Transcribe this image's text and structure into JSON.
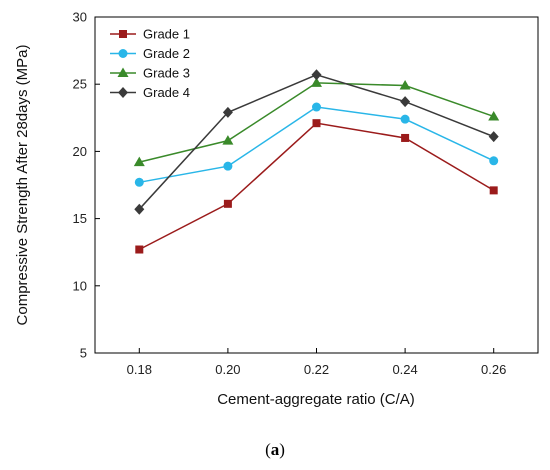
{
  "chart_data": {
    "type": "line",
    "title": "",
    "xlabel": "Cement-aggregate ratio (C/A)",
    "ylabel": "Compressive Strength After 28days (MPa)",
    "x": [
      0.18,
      0.2,
      0.22,
      0.24,
      0.26
    ],
    "x_tick_labels": [
      "0.18",
      "0.20",
      "0.22",
      "0.24",
      "0.26"
    ],
    "xlim": [
      0.17,
      0.27
    ],
    "ylim": [
      5,
      30
    ],
    "y_ticks": [
      5,
      10,
      15,
      20,
      25,
      30
    ],
    "grid": false,
    "legend_position": "top-left",
    "series": [
      {
        "name": "Grade 1",
        "color": "#9b1b1b",
        "marker": "square",
        "values": [
          12.7,
          16.1,
          22.1,
          21.0,
          17.1
        ]
      },
      {
        "name": "Grade 2",
        "color": "#29b6e8",
        "marker": "circle",
        "values": [
          17.7,
          18.9,
          23.3,
          22.4,
          19.3
        ]
      },
      {
        "name": "Grade 3",
        "color": "#3a8a2a",
        "marker": "triangle",
        "values": [
          19.2,
          20.8,
          25.1,
          24.9,
          22.6
        ]
      },
      {
        "name": "Grade 4",
        "color": "#3a3a3a",
        "marker": "diamond",
        "values": [
          15.7,
          22.9,
          25.7,
          23.7,
          21.1
        ]
      }
    ]
  },
  "caption": {
    "open": "(",
    "letter": "a",
    "close": ")"
  }
}
